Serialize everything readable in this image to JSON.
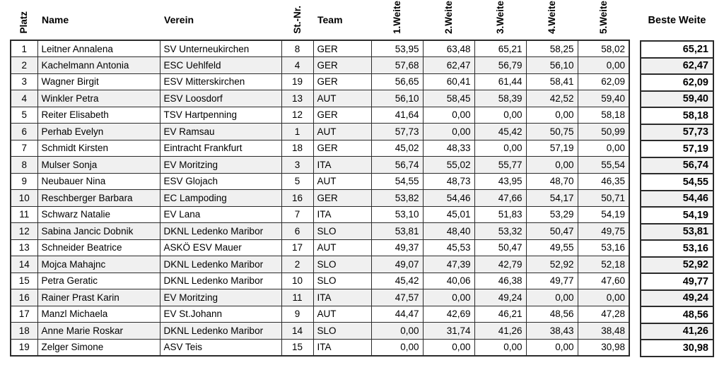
{
  "colors": {
    "background": "#ffffff",
    "stripe": "#f0f0f0",
    "border": "#2b2b2b",
    "text": "#000000"
  },
  "table": {
    "headers": {
      "platz": "Platz",
      "name": "Name",
      "verein": "Verein",
      "stnr": "St.-Nr.",
      "team": "Team",
      "weite1": "1.Weite",
      "weite2": "2.Weite",
      "weite3": "3.Weite",
      "weite4": "4.Weite",
      "weite5": "5.Weite",
      "beste": "Beste Weite"
    },
    "rows": [
      {
        "platz": "1",
        "name": "Leitner Annalena",
        "verein": "SV Unterneukirchen",
        "stnr": "8",
        "team": "GER",
        "weiten": [
          "53,95",
          "63,48",
          "65,21",
          "58,25",
          "58,02"
        ],
        "beste": "65,21"
      },
      {
        "platz": "2",
        "name": "Kachelmann Antonia",
        "verein": "ESC Uehlfeld",
        "stnr": "4",
        "team": "GER",
        "weiten": [
          "57,68",
          "62,47",
          "56,79",
          "56,10",
          "0,00"
        ],
        "beste": "62,47"
      },
      {
        "platz": "3",
        "name": "Wagner Birgit",
        "verein": "ESV Mitterskirchen",
        "stnr": "19",
        "team": "GER",
        "weiten": [
          "56,65",
          "60,41",
          "61,44",
          "58,41",
          "62,09"
        ],
        "beste": "62,09"
      },
      {
        "platz": "4",
        "name": "Winkler Petra",
        "verein": "ESV Loosdorf",
        "stnr": "13",
        "team": "AUT",
        "weiten": [
          "56,10",
          "58,45",
          "58,39",
          "42,52",
          "59,40"
        ],
        "beste": "59,40"
      },
      {
        "platz": "5",
        "name": "Reiter Elisabeth",
        "verein": "TSV Hartpenning",
        "stnr": "12",
        "team": "GER",
        "weiten": [
          "41,64",
          "0,00",
          "0,00",
          "0,00",
          "58,18"
        ],
        "beste": "58,18"
      },
      {
        "platz": "6",
        "name": "Perhab Evelyn",
        "verein": "EV Ramsau",
        "stnr": "1",
        "team": "AUT",
        "weiten": [
          "57,73",
          "0,00",
          "45,42",
          "50,75",
          "50,99"
        ],
        "beste": "57,73"
      },
      {
        "platz": "7",
        "name": "Schmidt Kirsten",
        "verein": "Eintracht Frankfurt",
        "stnr": "18",
        "team": "GER",
        "weiten": [
          "45,02",
          "48,33",
          "0,00",
          "57,19",
          "0,00"
        ],
        "beste": "57,19"
      },
      {
        "platz": "8",
        "name": "Mulser Sonja",
        "verein": "EV Moritzing",
        "stnr": "3",
        "team": "ITA",
        "weiten": [
          "56,74",
          "55,02",
          "55,77",
          "0,00",
          "55,54"
        ],
        "beste": "56,74"
      },
      {
        "platz": "9",
        "name": "Neubauer Nina",
        "verein": "ESV Glojach",
        "stnr": "5",
        "team": "AUT",
        "weiten": [
          "54,55",
          "48,73",
          "43,95",
          "48,70",
          "46,35"
        ],
        "beste": "54,55"
      },
      {
        "platz": "10",
        "name": "Reschberger Barbara",
        "verein": "EC Lampoding",
        "stnr": "16",
        "team": "GER",
        "weiten": [
          "53,82",
          "54,46",
          "47,66",
          "54,17",
          "50,71"
        ],
        "beste": "54,46"
      },
      {
        "platz": "11",
        "name": "Schwarz Natalie",
        "verein": "EV Lana",
        "stnr": "7",
        "team": "ITA",
        "weiten": [
          "53,10",
          "45,01",
          "51,83",
          "53,29",
          "54,19"
        ],
        "beste": "54,19"
      },
      {
        "platz": "12",
        "name": "Sabina Jancic Dobnik",
        "verein": "DKNL Ledenko Maribor",
        "stnr": "6",
        "team": "SLO",
        "weiten": [
          "53,81",
          "48,40",
          "53,32",
          "50,47",
          "49,75"
        ],
        "beste": "53,81"
      },
      {
        "platz": "13",
        "name": "Schneider Beatrice",
        "verein": "ASKÖ ESV Mauer",
        "stnr": "17",
        "team": "AUT",
        "weiten": [
          "49,37",
          "45,53",
          "50,47",
          "49,55",
          "53,16"
        ],
        "beste": "53,16"
      },
      {
        "platz": "14",
        "name": "Mojca Mahajnc",
        "verein": "DKNL Ledenko Maribor",
        "stnr": "2",
        "team": "SLO",
        "weiten": [
          "49,07",
          "47,39",
          "42,79",
          "52,92",
          "52,18"
        ],
        "beste": "52,92"
      },
      {
        "platz": "15",
        "name": "Petra Geratic",
        "verein": "DKNL Ledenko Maribor",
        "stnr": "10",
        "team": "SLO",
        "weiten": [
          "45,42",
          "40,06",
          "46,38",
          "49,77",
          "47,60"
        ],
        "beste": "49,77"
      },
      {
        "platz": "16",
        "name": "Rainer Prast Karin",
        "verein": "EV Moritzing",
        "stnr": "11",
        "team": "ITA",
        "weiten": [
          "47,57",
          "0,00",
          "49,24",
          "0,00",
          "0,00"
        ],
        "beste": "49,24"
      },
      {
        "platz": "17",
        "name": "Manzl Michaela",
        "verein": "EV St.Johann",
        "stnr": "9",
        "team": "AUT",
        "weiten": [
          "44,47",
          "42,69",
          "46,21",
          "48,56",
          "47,28"
        ],
        "beste": "48,56"
      },
      {
        "platz": "18",
        "name": "Anne Marie Roskar",
        "verein": "DKNL Ledenko Maribor",
        "stnr": "14",
        "team": "SLO",
        "weiten": [
          "0,00",
          "31,74",
          "41,26",
          "38,43",
          "38,48"
        ],
        "beste": "41,26"
      },
      {
        "platz": "19",
        "name": "Zelger Simone",
        "verein": "ASV Teis",
        "stnr": "15",
        "team": "ITA",
        "weiten": [
          "0,00",
          "0,00",
          "0,00",
          "0,00",
          "30,98"
        ],
        "beste": "30,98"
      }
    ]
  }
}
